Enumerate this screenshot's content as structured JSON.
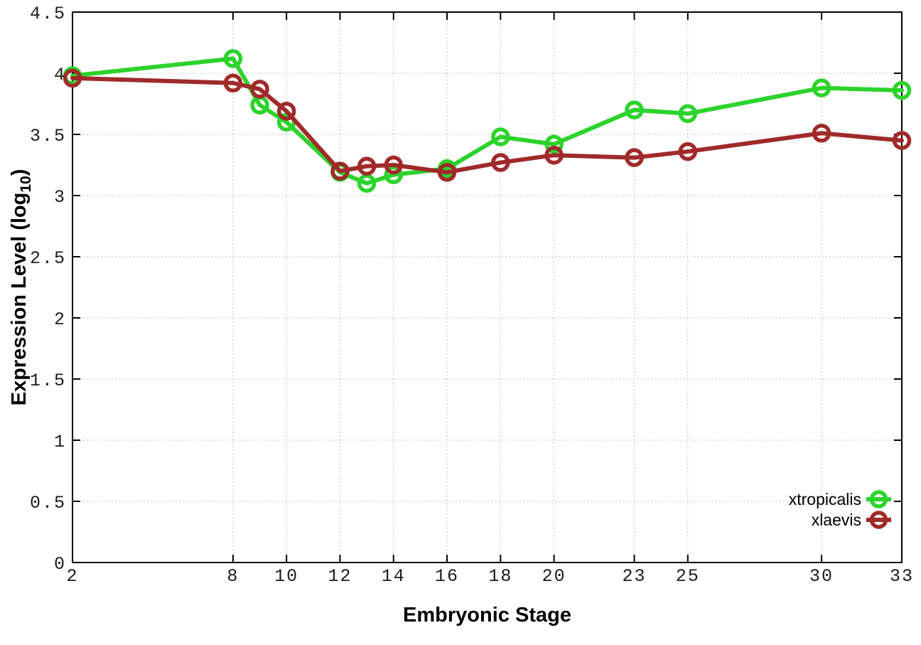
{
  "chart_data": {
    "type": "line",
    "title": "",
    "xlabel": "Embryonic Stage",
    "ylabel": "Expression Level (log10)",
    "ylabel_parts": {
      "main": "Expression Level (log",
      "subscript": "10",
      "close": ")"
    },
    "x": [
      2,
      8,
      9,
      10,
      12,
      13,
      14,
      16,
      18,
      20,
      23,
      25,
      30,
      33
    ],
    "series": [
      {
        "name": "xtropicalis",
        "color": "#2cd32c",
        "values": [
          3.98,
          4.12,
          3.74,
          3.6,
          3.19,
          3.1,
          3.17,
          3.22,
          3.48,
          3.42,
          3.7,
          3.67,
          3.88,
          3.86
        ]
      },
      {
        "name": "xlaevis",
        "color": "#a02a2a",
        "values": [
          3.96,
          3.92,
          3.87,
          3.69,
          3.2,
          3.24,
          3.25,
          3.19,
          3.27,
          3.33,
          3.31,
          3.36,
          3.51,
          3.45
        ]
      }
    ],
    "xlim": [
      2,
      33
    ],
    "ylim": [
      0,
      4.5
    ],
    "xticks": [
      2,
      8,
      10,
      12,
      14,
      16,
      18,
      20,
      23,
      25,
      30,
      33
    ],
    "yticks": [
      0,
      0.5,
      1,
      1.5,
      2,
      2.5,
      3,
      3.5,
      4,
      4.5
    ],
    "ytick_labels": [
      "0",
      "0.5",
      "1",
      "1.5",
      "2",
      "2.5",
      "3",
      "3.5",
      "4",
      "4.5"
    ],
    "grid": true,
    "legend_position": "bottom-right",
    "marker": "open-circle"
  },
  "colors": {
    "background": "#ffffff",
    "axis": "#000000",
    "grid": "#aaaaaa",
    "tick_label": "#1c1c1c",
    "axis_label": "#000000",
    "legend_text": "#000000"
  }
}
